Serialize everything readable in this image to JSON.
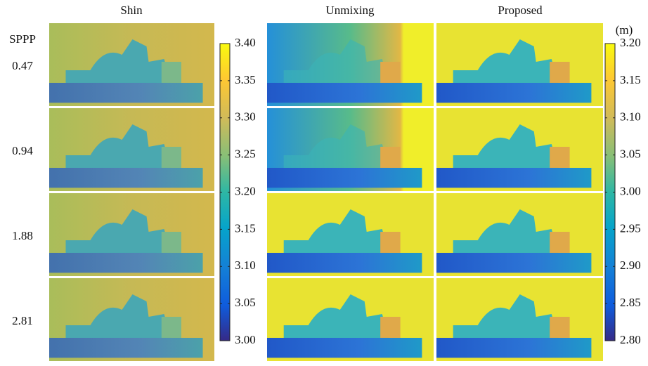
{
  "figure": {
    "column_titles": [
      "Shin",
      "Unmixing",
      "Proposed"
    ],
    "row_header": "SPPP",
    "rows": [
      0.47,
      0.94,
      1.88,
      2.81
    ],
    "colorbars": [
      {
        "lim": [
          3,
          3.4
        ],
        "ticks": [
          {
            "value": 3,
            "label": "3.00"
          },
          3.05,
          {
            "value": 3.1,
            "label": "3.10"
          },
          3.15,
          {
            "value": 3.2,
            "label": "3.20"
          },
          3.25,
          {
            "value": 3.3,
            "label": "3.30"
          },
          3.35,
          {
            "value": 3.4,
            "label": "3.40"
          }
        ]
      },
      {
        "unit": "(m)",
        "lim": [
          2.8,
          3.2
        ],
        "ticks": [
          {
            "value": 2.8,
            "label": "2.80"
          },
          2.85,
          {
            "value": 2.9,
            "label": "2.90"
          },
          2.95,
          {
            "value": 3,
            "label": "3.00"
          },
          3.05,
          {
            "value": 3.1,
            "label": "3.10"
          },
          3.15,
          {
            "value": 3.2,
            "label": "3.20"
          }
        ]
      }
    ]
  }
}
